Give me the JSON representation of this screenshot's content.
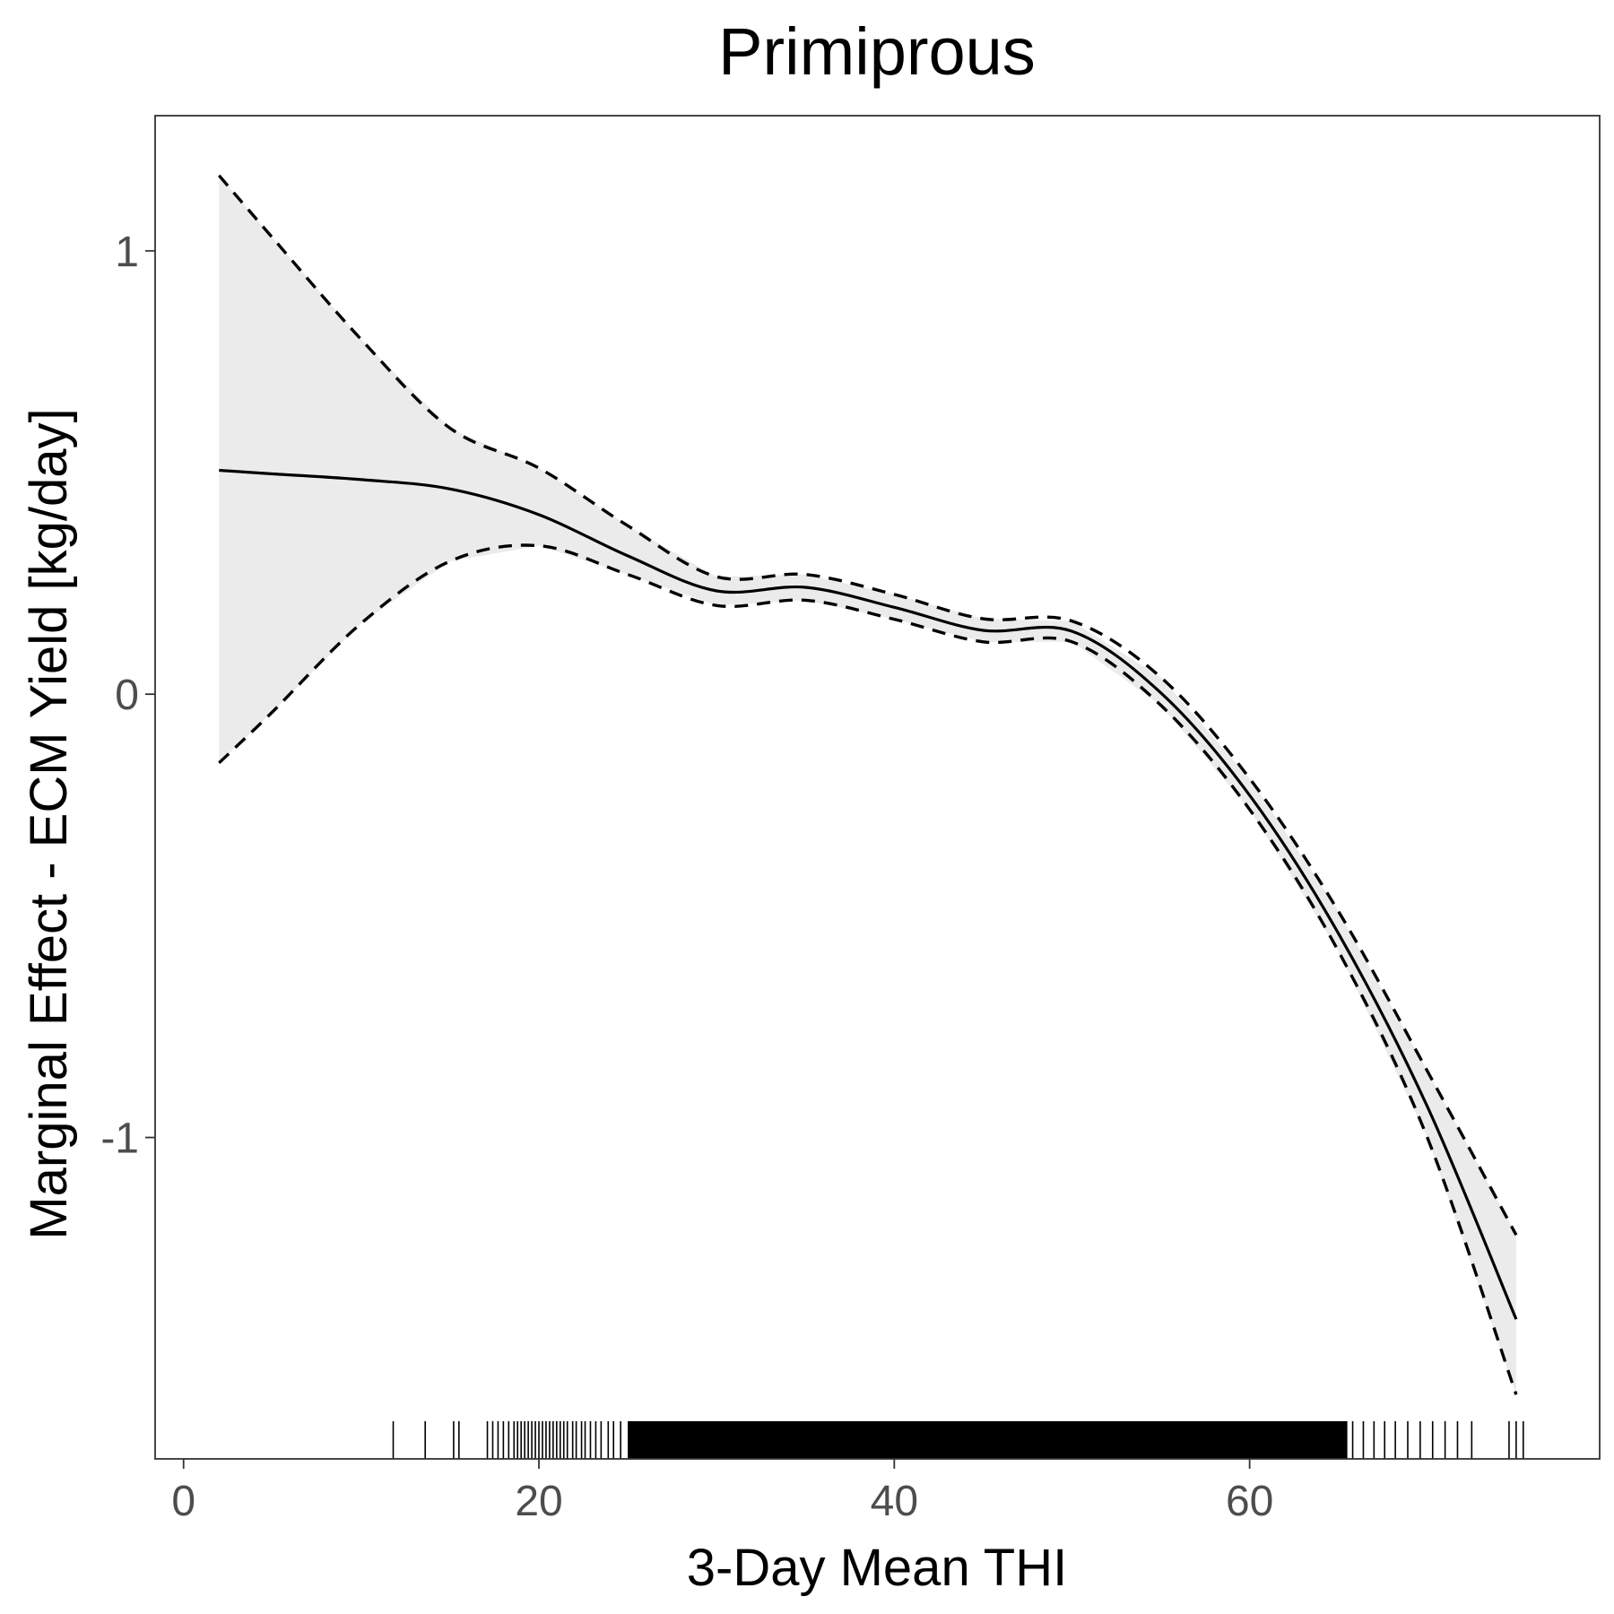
{
  "chart_data": {
    "type": "line",
    "title": "Primiprous",
    "xlabel": "3-Day Mean THI",
    "ylabel": "Marginal Effect - ECM Yield [kg/day]",
    "xlim": [
      -1.6,
      79.7
    ],
    "ylim": [
      -1.725,
      1.305
    ],
    "xticks": [
      0,
      20,
      40,
      60
    ],
    "xtick_labels": [
      "0",
      "20",
      "40",
      "60"
    ],
    "yticks": [
      1,
      0,
      -1
    ],
    "ytick_labels": [
      "1",
      "0",
      "-1"
    ],
    "grid": false,
    "legend": "none",
    "colors": {
      "line": "#000000",
      "ribbon": "#ebebeb",
      "panel_border": "#333333",
      "tick_label": "#4d4d4d"
    },
    "series": [
      {
        "style": "solid",
        "x": [
          2,
          5,
          10,
          15,
          20,
          25,
          30,
          35,
          40,
          45,
          50,
          55,
          60,
          65,
          70,
          75
        ],
        "y": [
          0.505,
          0.497,
          0.484,
          0.463,
          0.405,
          0.312,
          0.233,
          0.241,
          0.196,
          0.144,
          0.142,
          0.003,
          -0.228,
          -0.54,
          -0.93,
          -1.41
        ]
      },
      {
        "style": "dashed",
        "x": [
          2,
          5,
          10,
          15,
          20,
          25,
          30,
          35,
          40,
          45,
          50,
          55,
          60,
          65,
          70,
          75
        ],
        "y": [
          1.17,
          1.03,
          0.8,
          0.6,
          0.51,
          0.38,
          0.265,
          0.27,
          0.225,
          0.17,
          0.165,
          0.038,
          -0.19,
          -0.49,
          -0.85,
          -1.22
        ]
      },
      {
        "style": "dashed",
        "x": [
          2,
          5,
          10,
          15,
          20,
          25,
          30,
          35,
          40,
          45,
          50,
          55,
          60,
          65,
          70,
          75
        ],
        "y": [
          -0.155,
          -0.04,
          0.16,
          0.3,
          0.335,
          0.27,
          0.2,
          0.212,
          0.169,
          0.118,
          0.118,
          -0.025,
          -0.26,
          -0.58,
          -1.0,
          -1.58
        ]
      }
    ],
    "rug": {
      "sparse_x": [
        11.8,
        13.6,
        15.2,
        15.5,
        17.1,
        17.4,
        17.7,
        18.0,
        18.3,
        18.6,
        18.8,
        19.0,
        19.2,
        19.4,
        19.6,
        19.8,
        20.0,
        20.2,
        20.4,
        20.6,
        20.8,
        21.0,
        21.2,
        21.4,
        21.6,
        21.9,
        22.1,
        22.4,
        22.6,
        22.9,
        23.2,
        23.5,
        23.9,
        24.2,
        24.6,
        65.8,
        66.4,
        67.0,
        67.6,
        68.2,
        68.9,
        69.6,
        70.3,
        71.0,
        71.7,
        72.5,
        74.6,
        75.0,
        75.4
      ],
      "dense_range": [
        25,
        65.5
      ]
    }
  }
}
